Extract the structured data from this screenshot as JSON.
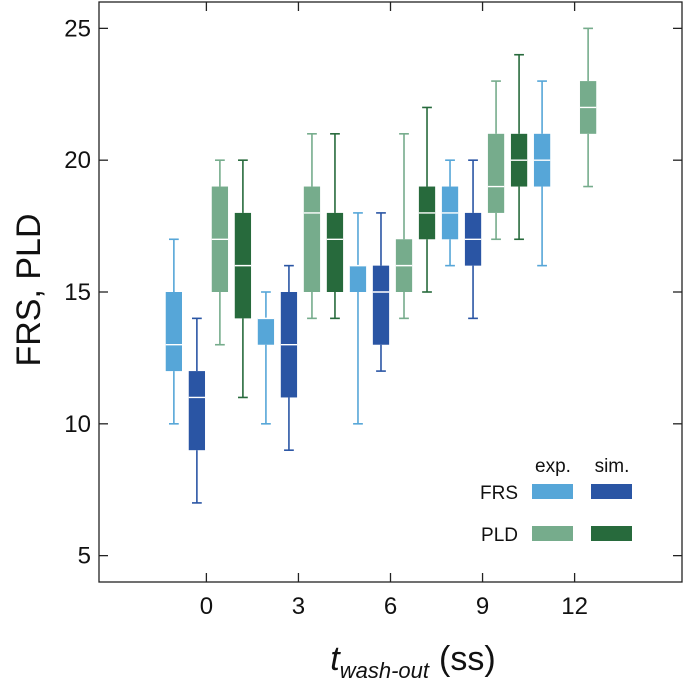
{
  "chart_data": {
    "type": "box",
    "xlabel_main": "t",
    "xlabel_sub": "wash-out",
    "xlabel_unit": "(ss)",
    "ylabel": "FRS, PLD",
    "ylim": [
      4,
      26
    ],
    "yticks": [
      5,
      10,
      15,
      20,
      25
    ],
    "xlim": [
      -3.5,
      15.5
    ],
    "xticks": [
      0,
      3,
      6,
      9,
      12
    ],
    "grid": false,
    "legend": {
      "placement": "bottom-right",
      "column_labels": [
        "exp.",
        "sim."
      ],
      "row_labels": [
        "FRS",
        "PLD"
      ]
    },
    "series": [
      {
        "key": "frs_exp",
        "group": "FRS",
        "kind": "exp.",
        "color": "#56a6d8",
        "boxes": [
          {
            "x": 0,
            "min": 10,
            "q1": 12,
            "median": 13,
            "q3": 15,
            "max": 17
          },
          {
            "x": 3,
            "min": 10,
            "q1": 13,
            "median": 14,
            "q3": 14,
            "max": 15
          },
          {
            "x": 6,
            "min": 10,
            "q1": 15,
            "median": 16,
            "q3": 16,
            "max": 18
          },
          {
            "x": 9,
            "min": 16,
            "q1": 17,
            "median": 18,
            "q3": 19,
            "max": 20
          },
          {
            "x": 12,
            "min": 16,
            "q1": 19,
            "median": 20,
            "q3": 21,
            "max": 23
          }
        ]
      },
      {
        "key": "frs_sim",
        "group": "FRS",
        "kind": "sim.",
        "color": "#2a55a4",
        "boxes": [
          {
            "x": 0,
            "min": 7,
            "q1": 9,
            "median": 11,
            "q3": 12,
            "max": 14
          },
          {
            "x": 3,
            "min": 9,
            "q1": 11,
            "median": 13,
            "q3": 15,
            "max": 16
          },
          {
            "x": 6,
            "min": 12,
            "q1": 13,
            "median": 15,
            "q3": 16,
            "max": 18
          },
          {
            "x": 9,
            "min": 14,
            "q1": 16,
            "median": 17,
            "q3": 18,
            "max": 20
          }
        ]
      },
      {
        "key": "pld_exp",
        "group": "PLD",
        "kind": "exp.",
        "color": "#76ac8c",
        "boxes": [
          {
            "x": 0,
            "min": 13,
            "q1": 15,
            "median": 17,
            "q3": 19,
            "max": 20
          },
          {
            "x": 3,
            "min": 14,
            "q1": 15,
            "median": 18,
            "q3": 19,
            "max": 21
          },
          {
            "x": 6,
            "min": 14,
            "q1": 15,
            "median": 16,
            "q3": 17,
            "max": 21
          },
          {
            "x": 9,
            "min": 17,
            "q1": 18,
            "median": 19,
            "q3": 21,
            "max": 23
          },
          {
            "x": 12,
            "min": 19,
            "q1": 21,
            "median": 22,
            "q3": 23,
            "max": 25
          }
        ]
      },
      {
        "key": "pld_sim",
        "group": "PLD",
        "kind": "sim.",
        "color": "#276a3c",
        "boxes": [
          {
            "x": 0,
            "min": 11,
            "q1": 14,
            "median": 16,
            "q3": 18,
            "max": 20
          },
          {
            "x": 3,
            "min": 14,
            "q1": 15,
            "median": 17,
            "q3": 18,
            "max": 21
          },
          {
            "x": 6,
            "min": 15,
            "q1": 17,
            "median": 18,
            "q3": 19,
            "max": 22
          },
          {
            "x": 9,
            "min": 17,
            "q1": 19,
            "median": 20,
            "q3": 21,
            "max": 24
          }
        ]
      }
    ]
  }
}
